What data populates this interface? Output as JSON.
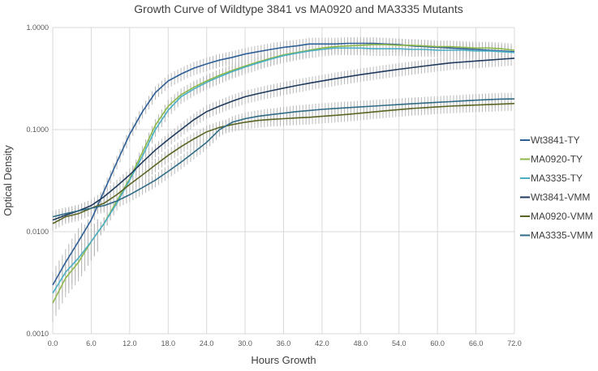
{
  "chart_data": {
    "type": "line",
    "title": "Growth Curve of Wildtype 3841  vs MA0920 and MA3335 Mutants",
    "xlabel": "Hours Growth",
    "ylabel": "Optical Density",
    "xlim": [
      0,
      72
    ],
    "ylim": [
      0.001,
      1
    ],
    "yscale": "log",
    "grid": true,
    "legend_position": "right",
    "x_ticks": [
      "0.0",
      "6.0",
      "12.0",
      "18.0",
      "24.0",
      "30.0",
      "36.0",
      "42.0",
      "48.0",
      "54.0",
      "60.0",
      "66.0",
      "72.0"
    ],
    "y_ticks": [
      "1.0000",
      "0.1000",
      "0.0100",
      "0.0010"
    ],
    "x": [
      0,
      2,
      4,
      6,
      8,
      10,
      12,
      14,
      16,
      18,
      20,
      22,
      24,
      26,
      28,
      30,
      32,
      34,
      36,
      38,
      40,
      42,
      44,
      46,
      48,
      50,
      52,
      54,
      56,
      58,
      60,
      62,
      64,
      66,
      68,
      70,
      72
    ],
    "series": [
      {
        "name": "Wt3841-TY",
        "color": "#2e5f96",
        "values": [
          0.003,
          0.005,
          0.008,
          0.013,
          0.025,
          0.048,
          0.09,
          0.15,
          0.23,
          0.3,
          0.35,
          0.4,
          0.44,
          0.48,
          0.51,
          0.55,
          0.58,
          0.61,
          0.64,
          0.66,
          0.69,
          0.69,
          0.69,
          0.7,
          0.7,
          0.7,
          0.69,
          0.68,
          0.66,
          0.65,
          0.64,
          0.63,
          0.62,
          0.61,
          0.6,
          0.59,
          0.58
        ]
      },
      {
        "name": "MA0920-TY",
        "color": "#8db84a",
        "values": [
          0.002,
          0.0035,
          0.005,
          0.008,
          0.012,
          0.02,
          0.033,
          0.06,
          0.11,
          0.17,
          0.22,
          0.26,
          0.3,
          0.34,
          0.38,
          0.42,
          0.46,
          0.5,
          0.54,
          0.57,
          0.6,
          0.63,
          0.65,
          0.66,
          0.67,
          0.68,
          0.68,
          0.67,
          0.67,
          0.66,
          0.65,
          0.65,
          0.64,
          0.63,
          0.63,
          0.62,
          0.6
        ]
      },
      {
        "name": "MA3335-TY",
        "color": "#4aaec5",
        "values": [
          0.0025,
          0.004,
          0.0055,
          0.008,
          0.012,
          0.019,
          0.032,
          0.055,
          0.1,
          0.155,
          0.21,
          0.25,
          0.29,
          0.33,
          0.37,
          0.41,
          0.45,
          0.49,
          0.53,
          0.56,
          0.59,
          0.61,
          0.63,
          0.63,
          0.63,
          0.62,
          0.62,
          0.62,
          0.61,
          0.61,
          0.6,
          0.6,
          0.6,
          0.59,
          0.59,
          0.58,
          0.57
        ]
      },
      {
        "name": "Wt3841-VMM",
        "color": "#1f3a5c",
        "values": [
          0.013,
          0.0145,
          0.016,
          0.018,
          0.022,
          0.028,
          0.036,
          0.048,
          0.063,
          0.08,
          0.1,
          0.125,
          0.15,
          0.17,
          0.19,
          0.21,
          0.225,
          0.24,
          0.255,
          0.27,
          0.285,
          0.3,
          0.315,
          0.33,
          0.345,
          0.36,
          0.375,
          0.39,
          0.405,
          0.42,
          0.435,
          0.45,
          0.46,
          0.47,
          0.48,
          0.49,
          0.5
        ]
      },
      {
        "name": "MA0920-VMM",
        "color": "#5a6423",
        "values": [
          0.012,
          0.014,
          0.015,
          0.017,
          0.019,
          0.023,
          0.029,
          0.036,
          0.045,
          0.056,
          0.068,
          0.081,
          0.095,
          0.105,
          0.112,
          0.118,
          0.123,
          0.126,
          0.128,
          0.13,
          0.132,
          0.135,
          0.138,
          0.141,
          0.145,
          0.149,
          0.153,
          0.157,
          0.161,
          0.164,
          0.167,
          0.17,
          0.172,
          0.174,
          0.176,
          0.178,
          0.18
        ]
      },
      {
        "name": "MA3335-VMM",
        "color": "#2f6b86",
        "values": [
          0.014,
          0.015,
          0.016,
          0.017,
          0.018,
          0.02,
          0.023,
          0.027,
          0.032,
          0.039,
          0.048,
          0.06,
          0.075,
          0.1,
          0.118,
          0.128,
          0.135,
          0.14,
          0.145,
          0.15,
          0.154,
          0.158,
          0.161,
          0.164,
          0.167,
          0.17,
          0.173,
          0.176,
          0.179,
          0.182,
          0.185,
          0.188,
          0.191,
          0.194,
          0.197,
          0.199,
          0.2
        ]
      }
    ]
  }
}
